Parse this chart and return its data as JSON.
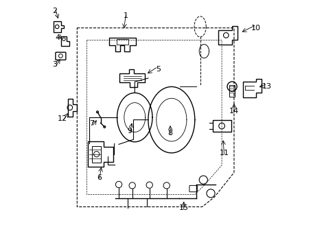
{
  "background_color": "#ffffff",
  "line_color": "#000000",
  "label_color": "#000000",
  "label_positions": {
    "1": [
      0.33,
      0.94,
      0.32,
      0.88
    ],
    "2": [
      0.04,
      0.96,
      0.055,
      0.92
    ],
    "3": [
      0.04,
      0.74,
      0.065,
      0.77
    ],
    "4": [
      0.05,
      0.85,
      0.075,
      0.84
    ],
    "5": [
      0.46,
      0.72,
      0.41,
      0.7
    ],
    "6": [
      0.22,
      0.28,
      0.23,
      0.33
    ],
    "7": [
      0.19,
      0.5,
      0.215,
      0.52
    ],
    "8": [
      0.51,
      0.46,
      0.51,
      0.5
    ],
    "9": [
      0.345,
      0.47,
      0.355,
      0.51
    ],
    "10": [
      0.86,
      0.89,
      0.795,
      0.87
    ],
    "11": [
      0.73,
      0.38,
      0.725,
      0.44
    ],
    "12": [
      0.07,
      0.52,
      0.1,
      0.55
    ],
    "13": [
      0.905,
      0.65,
      0.865,
      0.645
    ],
    "14": [
      0.77,
      0.55,
      0.77,
      0.59
    ],
    "15": [
      0.565,
      0.155,
      0.565,
      0.19
    ]
  }
}
